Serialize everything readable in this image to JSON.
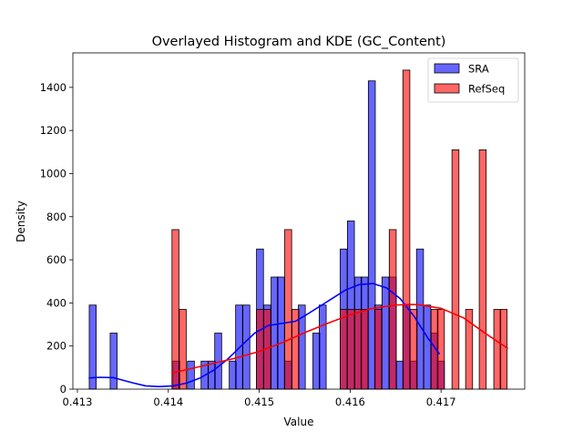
{
  "chart_data": {
    "type": "histogram",
    "title": "Overlayed Histogram and KDE (GC_Content)",
    "xlabel": "Value",
    "ylabel": "Density",
    "xlim": [
      0.41295,
      0.41792
    ],
    "ylim": [
      0,
      1560
    ],
    "xticks": [
      0.413,
      0.414,
      0.415,
      0.416,
      0.417
    ],
    "xtick_labels": [
      "0.413",
      "0.414",
      "0.415",
      "0.416",
      "0.417"
    ],
    "yticks": [
      0,
      200,
      400,
      600,
      800,
      1000,
      1200,
      1400
    ],
    "ytick_labels": [
      "0",
      "200",
      "400",
      "600",
      "800",
      "1000",
      "1200",
      "1400"
    ],
    "grid": false,
    "legend_position": "top-right",
    "colors": {
      "SRA": "#0000ff",
      "RefSeq": "#ff0000",
      "bar_edge": "#000000"
    },
    "series": [
      {
        "name": "SRA",
        "bin_width": 7.66e-05,
        "bins": [
          [
            0.41313,
            390
          ],
          [
            0.41336,
            260
          ],
          [
            0.41405,
            130
          ],
          [
            0.41421,
            130
          ],
          [
            0.41436,
            130
          ],
          [
            0.41444,
            130
          ],
          [
            0.41451,
            260
          ],
          [
            0.41467,
            130
          ],
          [
            0.41474,
            390
          ],
          [
            0.41482,
            390
          ],
          [
            0.41497,
            650
          ],
          [
            0.41505,
            390
          ],
          [
            0.41513,
            520
          ],
          [
            0.4152,
            520
          ],
          [
            0.41528,
            130
          ],
          [
            0.41543,
            390
          ],
          [
            0.41559,
            260
          ],
          [
            0.41566,
            390
          ],
          [
            0.41589,
            650
          ],
          [
            0.41597,
            780
          ],
          [
            0.41605,
            520
          ],
          [
            0.41612,
            520
          ],
          [
            0.4162,
            1430
          ],
          [
            0.41627,
            390
          ],
          [
            0.41635,
            520
          ],
          [
            0.41643,
            520
          ],
          [
            0.41651,
            130
          ],
          [
            0.41658,
            390
          ],
          [
            0.41666,
            130
          ],
          [
            0.41673,
            650
          ],
          [
            0.41681,
            390
          ],
          [
            0.41689,
            260
          ],
          [
            0.41696,
            130
          ]
        ],
        "kde": [
          [
            0.41313,
            52
          ],
          [
            0.41325,
            55
          ],
          [
            0.4134,
            53
          ],
          [
            0.4136,
            30
          ],
          [
            0.41375,
            15
          ],
          [
            0.4139,
            12
          ],
          [
            0.41405,
            15
          ],
          [
            0.4142,
            28
          ],
          [
            0.41435,
            52
          ],
          [
            0.4145,
            88
          ],
          [
            0.41465,
            138
          ],
          [
            0.4148,
            200
          ],
          [
            0.41495,
            260
          ],
          [
            0.4151,
            295
          ],
          [
            0.41525,
            305
          ],
          [
            0.4154,
            315
          ],
          [
            0.4155,
            340
          ],
          [
            0.41565,
            380
          ],
          [
            0.4158,
            420
          ],
          [
            0.41595,
            460
          ],
          [
            0.4161,
            485
          ],
          [
            0.41625,
            490
          ],
          [
            0.4164,
            470
          ],
          [
            0.41655,
            420
          ],
          [
            0.4167,
            340
          ],
          [
            0.41685,
            240
          ],
          [
            0.41698,
            165
          ]
        ]
      },
      {
        "name": "RefSeq",
        "bin_width": 7.66e-05,
        "bins": [
          [
            0.41404,
            740
          ],
          [
            0.41412,
            370
          ],
          [
            0.41497,
            370
          ],
          [
            0.41505,
            370
          ],
          [
            0.41528,
            740
          ],
          [
            0.41536,
            370
          ],
          [
            0.41589,
            370
          ],
          [
            0.41597,
            370
          ],
          [
            0.41605,
            370
          ],
          [
            0.41612,
            370
          ],
          [
            0.41627,
            370
          ],
          [
            0.41643,
            740
          ],
          [
            0.41658,
            1480
          ],
          [
            0.41666,
            370
          ],
          [
            0.41689,
            370
          ],
          [
            0.41696,
            370
          ],
          [
            0.41712,
            1110
          ],
          [
            0.41727,
            370
          ],
          [
            0.41742,
            1110
          ],
          [
            0.41758,
            370
          ],
          [
            0.41765,
            370
          ]
        ],
        "kde": [
          [
            0.41404,
            75
          ],
          [
            0.41425,
            95
          ],
          [
            0.4145,
            120
          ],
          [
            0.41475,
            145
          ],
          [
            0.415,
            175
          ],
          [
            0.41525,
            215
          ],
          [
            0.4155,
            262
          ],
          [
            0.41575,
            305
          ],
          [
            0.416,
            345
          ],
          [
            0.41625,
            375
          ],
          [
            0.4165,
            390
          ],
          [
            0.41665,
            393
          ],
          [
            0.41675,
            392
          ],
          [
            0.417,
            375
          ],
          [
            0.41725,
            330
          ],
          [
            0.4175,
            255
          ],
          [
            0.41773,
            190
          ]
        ]
      }
    ]
  }
}
